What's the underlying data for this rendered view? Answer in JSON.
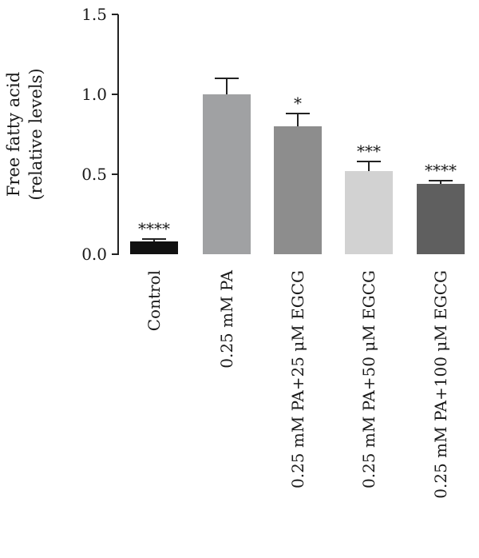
{
  "chart_data": {
    "type": "bar",
    "ylabel_lines": [
      "Free fatty acid",
      "(relative levels)"
    ],
    "ylim": [
      0,
      1.5
    ],
    "yticks": [
      "0.0",
      "0.5",
      "1.0",
      "1.5"
    ],
    "ytick_values": [
      0,
      0.5,
      1.0,
      1.5
    ],
    "categories": [
      "Control",
      "0.25 mM PA",
      "0.25 mM PA+25 μM EGCG",
      "0.25 mM PA+50 μM EGCG",
      "0.25 mM PA+100 μM EGCG"
    ],
    "values": [
      0.08,
      1.0,
      0.8,
      0.52,
      0.44
    ],
    "error": [
      0.015,
      0.1,
      0.08,
      0.06,
      0.02
    ],
    "significance": [
      "****",
      "",
      "*",
      "***",
      "****"
    ],
    "colors": [
      "#111111",
      "#a0a1a3",
      "#8d8d8d",
      "#d2d2d2",
      "#5f5f5f"
    ],
    "grid": false,
    "legend": "none"
  }
}
